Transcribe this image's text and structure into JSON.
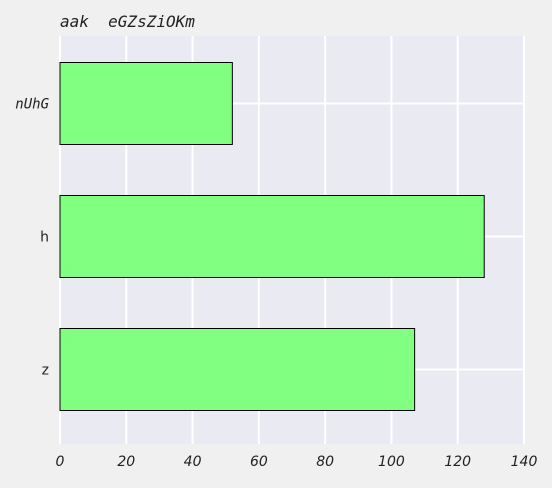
{
  "chart_data": {
    "type": "bar",
    "orientation": "horizontal",
    "title": "aak  eGZsZiOKm",
    "categories": [
      "nUhG",
      "h",
      "z"
    ],
    "category_label_styles": [
      "italic",
      "normal",
      "normal"
    ],
    "values": [
      52,
      128,
      107
    ],
    "xlim": [
      0,
      140
    ],
    "x_ticks": [
      0,
      20,
      40,
      60,
      80,
      100,
      120,
      140
    ],
    "grid": true,
    "xlabel": "",
    "ylabel": "",
    "colors": {
      "bar_fill": "#80ff80",
      "bar_stroke": "#000000",
      "plot_background": "#eaeaf2",
      "grid": "#ffffff",
      "figure_background": "#f0f0f0",
      "text": "#222222"
    }
  }
}
